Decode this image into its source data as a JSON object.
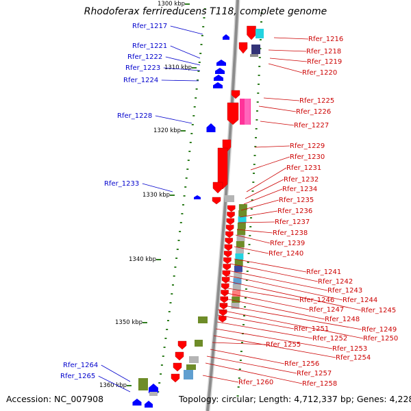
{
  "title": "Rhodoferax ferrireducens T118, complete genome",
  "accession": "Accession: NC_007908",
  "topology": "Topology: circular; Length: 4,712,337 bp; Genes: 4,228",
  "colors": {
    "left_label": "#0000cc",
    "right_label": "#cc0000",
    "left_gene": "#0000ff",
    "right_gene": "#ff0000",
    "tick": "#2e7d1e"
  },
  "scale_labels": [
    "1300 kbp",
    "1310 kbp",
    "1320 kbp",
    "1330 kbp",
    "1340 kbp",
    "1350 kbp",
    "1360 kbp"
  ],
  "left_genes": [
    "Rfer_1217",
    "Rfer_1221",
    "Rfer_1222",
    "Rfer_1223",
    "Rfer_1224",
    "Rfer_1228",
    "Rfer_1233",
    "Rfer_1264",
    "Rfer_1265"
  ],
  "right_genes": [
    "Rfer_1216",
    "Rfer_1218",
    "Rfer_1219",
    "Rfer_1220",
    "Rfer_1225",
    "Rfer_1226",
    "Rfer_1227",
    "Rfer_1229",
    "Rfer_1230",
    "Rfer_1231",
    "Rfer_1232",
    "Rfer_1234",
    "Rfer_1235",
    "Rfer_1236",
    "Rfer_1237",
    "Rfer_1238",
    "Rfer_1239",
    "Rfer_1240",
    "Rfer_1241",
    "Rfer_1242",
    "Rfer_1243",
    "Rfer_1244",
    "Rfer_1245",
    "Rfer_1246",
    "Rfer_1247",
    "Rfer_1248",
    "Rfer_1249",
    "Rfer_1250",
    "Rfer_1251",
    "Rfer_1252",
    "Rfer_1253",
    "Rfer_1254",
    "Rfer_1255",
    "Rfer_1256",
    "Rfer_1257",
    "Rfer_1258",
    "Rfer_1260"
  ]
}
